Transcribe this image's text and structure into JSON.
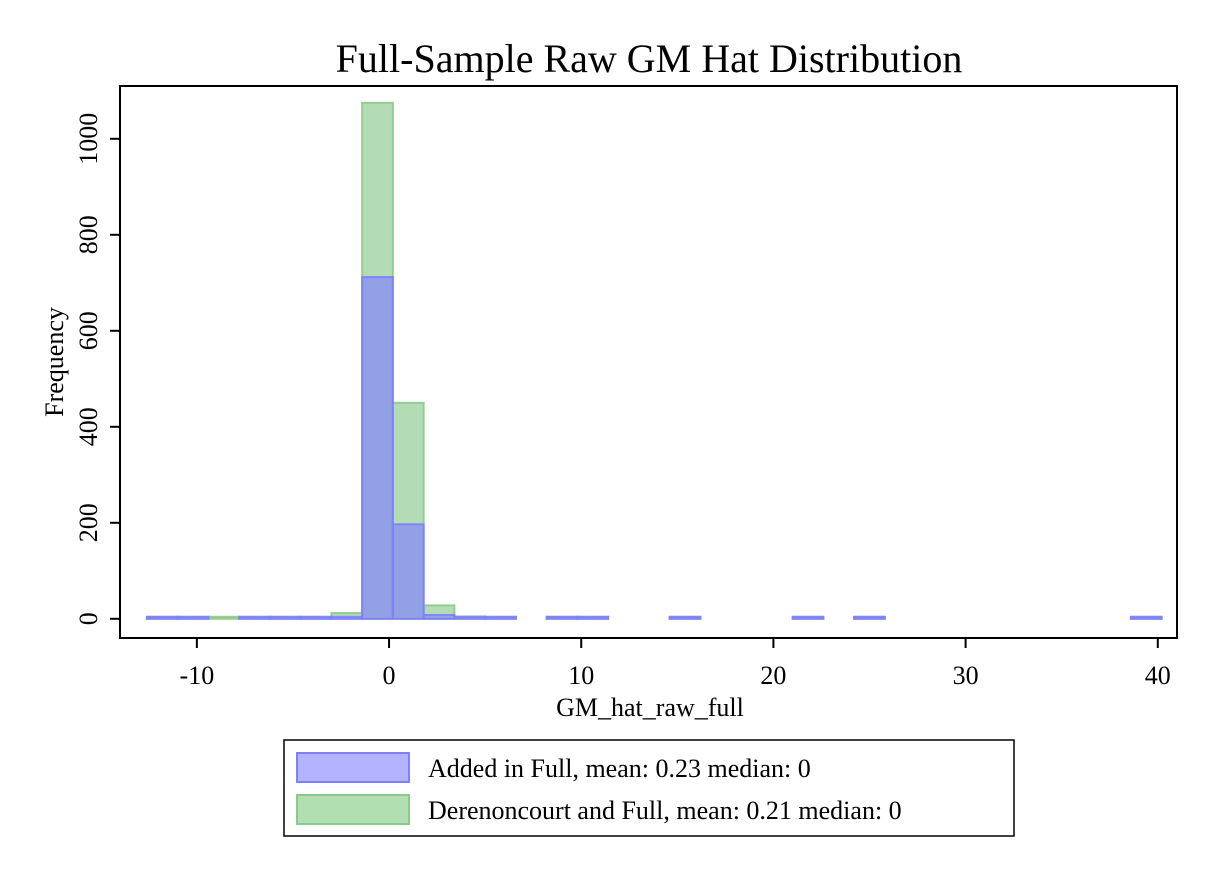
{
  "chart_data": {
    "type": "bar",
    "title": "Full-Sample Raw GM Hat Distribution",
    "xlabel": "GM_hat_raw_full",
    "ylabel": "Frequency",
    "xlim": [
      -14,
      41
    ],
    "ylim": [
      -40,
      1110
    ],
    "xticks": [
      -10,
      0,
      10,
      20,
      30,
      40
    ],
    "yticks": [
      0,
      200,
      400,
      600,
      800,
      1000
    ],
    "bin_width": 1.6,
    "grid": false,
    "legend_position": "bottom",
    "series": [
      {
        "name": "Derenoncourt and Full, mean: 0.21 median:  0",
        "color": "#8cc98c",
        "bins": [
          {
            "x0": -12.6,
            "x1": -11.0,
            "count": 2
          },
          {
            "x0": -11.0,
            "x1": -9.4,
            "count": 1
          },
          {
            "x0": -9.4,
            "x1": -7.8,
            "count": 1
          },
          {
            "x0": -7.8,
            "x1": -6.2,
            "count": 1
          },
          {
            "x0": -6.2,
            "x1": -4.6,
            "count": 1
          },
          {
            "x0": -4.6,
            "x1": -3.0,
            "count": 1
          },
          {
            "x0": -3.0,
            "x1": -1.4,
            "count": 12
          },
          {
            "x0": -1.4,
            "x1": 0.2,
            "count": 1075
          },
          {
            "x0": 0.2,
            "x1": 1.8,
            "count": 450
          },
          {
            "x0": 1.8,
            "x1": 3.4,
            "count": 28
          },
          {
            "x0": 3.4,
            "x1": 5.0,
            "count": 5
          },
          {
            "x0": 5.0,
            "x1": 6.6,
            "count": 2
          },
          {
            "x0": 8.2,
            "x1": 9.8,
            "count": 1
          },
          {
            "x0": 9.8,
            "x1": 11.4,
            "count": 1
          },
          {
            "x0": 14.6,
            "x1": 16.2,
            "count": 1
          },
          {
            "x0": 21.0,
            "x1": 22.6,
            "count": 1
          },
          {
            "x0": 24.2,
            "x1": 25.8,
            "count": 1
          },
          {
            "x0": 38.6,
            "x1": 40.2,
            "count": 1
          }
        ]
      },
      {
        "name": "Added in Full, mean: 0.23 median:  0",
        "color": "#7f7fff",
        "bins": [
          {
            "x0": -12.6,
            "x1": -11.0,
            "count": 1
          },
          {
            "x0": -11.0,
            "x1": -9.4,
            "count": 1
          },
          {
            "x0": -7.8,
            "x1": -6.2,
            "count": 1
          },
          {
            "x0": -6.2,
            "x1": -4.6,
            "count": 1
          },
          {
            "x0": -4.6,
            "x1": -3.0,
            "count": 1
          },
          {
            "x0": -3.0,
            "x1": -1.4,
            "count": 4
          },
          {
            "x0": -1.4,
            "x1": 0.2,
            "count": 712
          },
          {
            "x0": 0.2,
            "x1": 1.8,
            "count": 197
          },
          {
            "x0": 1.8,
            "x1": 3.4,
            "count": 8
          },
          {
            "x0": 3.4,
            "x1": 5.0,
            "count": 2
          },
          {
            "x0": 5.0,
            "x1": 6.6,
            "count": 1
          },
          {
            "x0": 8.2,
            "x1": 9.8,
            "count": 1
          },
          {
            "x0": 9.8,
            "x1": 11.4,
            "count": 1
          },
          {
            "x0": 14.6,
            "x1": 16.2,
            "count": 1
          },
          {
            "x0": 21.0,
            "x1": 22.6,
            "count": 1
          },
          {
            "x0": 24.2,
            "x1": 25.8,
            "count": 1
          },
          {
            "x0": 38.6,
            "x1": 40.2,
            "count": 1
          }
        ]
      }
    ],
    "legend": [
      {
        "label": "Added in Full, mean: 0.23 median:  0",
        "color": "#b3b3ff",
        "border": "#7f7fff"
      },
      {
        "label": "Derenoncourt and Full, mean: 0.21 median:  0",
        "color": "#b2dfb2",
        "border": "#8cc98c"
      }
    ]
  }
}
